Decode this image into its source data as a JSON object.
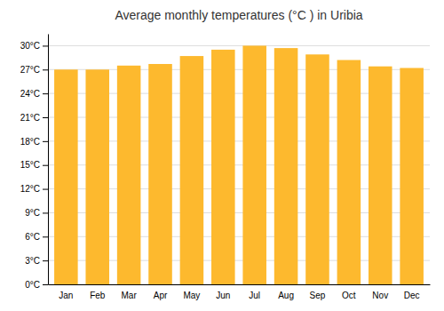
{
  "chart_data": {
    "type": "bar",
    "title": "Average monthly temperatures (°C ) in Uribia",
    "categories": [
      "Jan",
      "Feb",
      "Mar",
      "Apr",
      "May",
      "Jun",
      "Jul",
      "Aug",
      "Sep",
      "Oct",
      "Nov",
      "Dec"
    ],
    "values": [
      27.0,
      27.0,
      27.5,
      27.7,
      28.7,
      29.5,
      30.0,
      29.7,
      28.9,
      28.2,
      27.4,
      27.2
    ],
    "color": "#FDB92E",
    "ylim": [
      0,
      31.5
    ],
    "yticks": [
      {
        "value": 0,
        "label": "0°C"
      },
      {
        "value": 3,
        "label": "3°C"
      },
      {
        "value": 6,
        "label": "6°C"
      },
      {
        "value": 9,
        "label": "9°C"
      },
      {
        "value": 12,
        "label": "12°C"
      },
      {
        "value": 15,
        "label": "15°C"
      },
      {
        "value": 18,
        "label": "18°C"
      },
      {
        "value": 21,
        "label": "21°C"
      },
      {
        "value": 24,
        "label": "24°C"
      },
      {
        "value": 27,
        "label": "27°C"
      },
      {
        "value": 30,
        "label": "30°C"
      }
    ],
    "grid": true
  }
}
